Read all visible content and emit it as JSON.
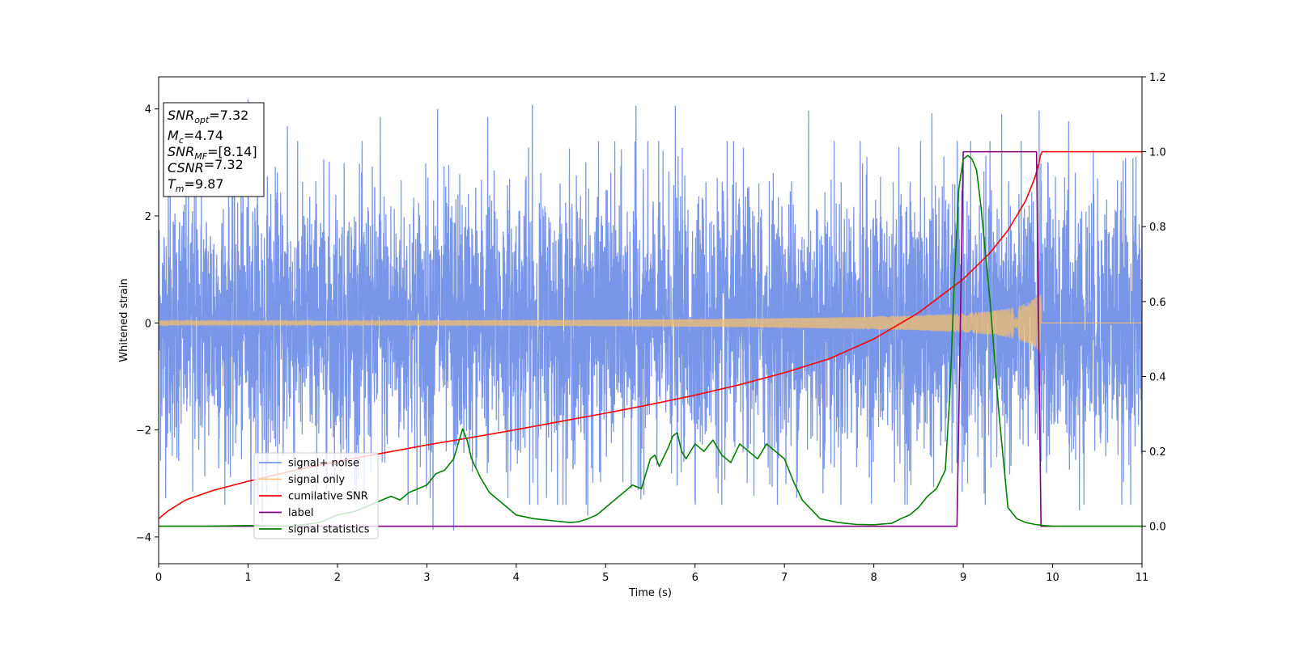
{
  "chart_data": {
    "type": "line",
    "xlabel": "Time (s)",
    "ylabel_left": "Whitened strain",
    "ylabel_right": "",
    "xlim": [
      0,
      11
    ],
    "ylim_left": [
      -4.5,
      4.6
    ],
    "ylim_right": [
      -0.1,
      1.2
    ],
    "x_ticks": [
      0,
      1,
      2,
      3,
      4,
      5,
      6,
      7,
      8,
      9,
      10,
      11
    ],
    "y_ticks_left": [
      -4,
      -2,
      0,
      2,
      4
    ],
    "y_ticks_right": [
      0.0,
      0.2,
      0.4,
      0.6,
      0.8,
      1.0,
      1.2
    ],
    "grid": false,
    "legend_placement": "lower-left",
    "annotation": {
      "snr_opt": {
        "name": "SNR",
        "sub": "opt",
        "value": "=7.32"
      },
      "mc": {
        "name": "M",
        "sub": "c",
        "value": "=4.74"
      },
      "snr_mf": {
        "name": "SNR",
        "sub": "MF",
        "value": "=[8.14]"
      },
      "csnr": {
        "name": "CSNR",
        "sub": "",
        "value": "=7.32"
      },
      "tm": {
        "name": "T",
        "sub": "m",
        "value": "=9.87"
      }
    },
    "series": [
      {
        "name": "signal+ noise",
        "axis": "left",
        "color": "#7a96e8",
        "noise_sigma": 1.25,
        "duration": 11,
        "x_extremes": [
          0.13,
          1.0,
          1.44,
          2.48,
          3.12,
          3.68,
          4.18,
          5.34,
          5.78,
          7.27,
          8.65,
          9.43,
          9.85,
          10.18
        ],
        "y_extremes": [
          2.7,
          4.18,
          3.68,
          3.85,
          4.0,
          3.85,
          4.08,
          4.06,
          4.06,
          3.97,
          3.92,
          3.9,
          3.97,
          3.77
        ],
        "x_minima": [
          0.38,
          1.16,
          2.3,
          3.07,
          3.3,
          4.8,
          6.3,
          9.05,
          10.3
        ],
        "y_minima": [
          -3.15,
          -3.72,
          -3.2,
          -3.87,
          -3.88,
          -3.6,
          -3.4,
          -3.0,
          -3.5
        ]
      },
      {
        "name": "signal only",
        "axis": "left",
        "color": "#f5bf6e",
        "merger_time": 9.87,
        "x_envelope": [
          0,
          2,
          4,
          6,
          7,
          8,
          8.5,
          9,
          9.3,
          9.5,
          9.7,
          9.8,
          9.87
        ],
        "y_envelope": [
          0.04,
          0.04,
          0.05,
          0.07,
          0.09,
          0.12,
          0.14,
          0.18,
          0.22,
          0.27,
          0.36,
          0.47,
          0.62
        ]
      },
      {
        "name": "cumilative SNR",
        "axis": "right",
        "color": "#ff0000",
        "x": [
          0,
          0.1,
          0.3,
          0.6,
          1.0,
          1.5,
          2.0,
          2.5,
          3.0,
          3.5,
          4.0,
          4.5,
          5.0,
          5.5,
          6.0,
          6.5,
          7.0,
          7.5,
          8.0,
          8.5,
          9.0,
          9.3,
          9.5,
          9.7,
          9.8,
          9.85,
          9.87,
          11
        ],
        "y": [
          0.02,
          0.04,
          0.07,
          0.095,
          0.12,
          0.148,
          0.173,
          0.195,
          0.217,
          0.237,
          0.258,
          0.28,
          0.302,
          0.325,
          0.35,
          0.378,
          0.41,
          0.447,
          0.5,
          0.57,
          0.66,
          0.73,
          0.79,
          0.87,
          0.93,
          0.97,
          1.0,
          1.0
        ]
      },
      {
        "name": "label",
        "axis": "right",
        "color": "#800080",
        "x": [
          0,
          8.93,
          9.0,
          9.82,
          9.87,
          11
        ],
        "y": [
          0,
          0,
          1,
          1,
          0,
          0
        ]
      },
      {
        "name": "signal statistics",
        "axis": "right",
        "color": "#008000",
        "x": [
          0,
          0.5,
          1.0,
          1.5,
          1.8,
          2.0,
          2.2,
          2.4,
          2.5,
          2.6,
          2.7,
          2.8,
          2.9,
          3.0,
          3.1,
          3.2,
          3.3,
          3.4,
          3.45,
          3.5,
          3.6,
          3.7,
          3.8,
          3.9,
          4.0,
          4.2,
          4.4,
          4.6,
          4.7,
          4.8,
          4.9,
          5.0,
          5.1,
          5.2,
          5.3,
          5.4,
          5.5,
          5.55,
          5.6,
          5.7,
          5.75,
          5.8,
          5.85,
          5.9,
          6.0,
          6.1,
          6.2,
          6.3,
          6.4,
          6.5,
          6.6,
          6.7,
          6.8,
          6.9,
          7.0,
          7.1,
          7.2,
          7.4,
          7.6,
          7.8,
          8.0,
          8.2,
          8.3,
          8.4,
          8.5,
          8.6,
          8.7,
          8.8,
          8.85,
          8.9,
          8.95,
          9.0,
          9.05,
          9.1,
          9.15,
          9.2,
          9.3,
          9.4,
          9.5,
          9.6,
          9.7,
          9.8,
          9.9,
          10.0,
          10.5,
          11.0
        ],
        "y": [
          0.0,
          0.0,
          0.002,
          0.0,
          0.01,
          0.03,
          0.04,
          0.06,
          0.07,
          0.08,
          0.07,
          0.09,
          0.1,
          0.11,
          0.14,
          0.15,
          0.18,
          0.26,
          0.23,
          0.18,
          0.13,
          0.09,
          0.07,
          0.05,
          0.03,
          0.02,
          0.015,
          0.01,
          0.012,
          0.02,
          0.03,
          0.05,
          0.07,
          0.09,
          0.11,
          0.1,
          0.18,
          0.19,
          0.16,
          0.21,
          0.24,
          0.25,
          0.2,
          0.18,
          0.22,
          0.2,
          0.23,
          0.19,
          0.17,
          0.22,
          0.2,
          0.18,
          0.22,
          0.2,
          0.18,
          0.12,
          0.07,
          0.02,
          0.01,
          0.005,
          0.004,
          0.008,
          0.02,
          0.03,
          0.05,
          0.08,
          0.1,
          0.15,
          0.35,
          0.65,
          0.9,
          0.98,
          0.99,
          0.98,
          0.95,
          0.85,
          0.6,
          0.3,
          0.05,
          0.02,
          0.01,
          0.005,
          0.002,
          0.0,
          0.0,
          0.0
        ]
      }
    ]
  }
}
